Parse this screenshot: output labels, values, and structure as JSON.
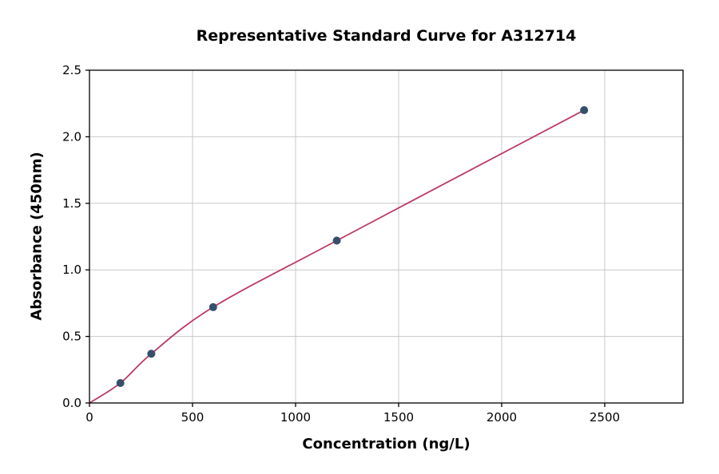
{
  "chart_data": {
    "type": "scatter",
    "title": "Representative Standard Curve for A312714",
    "xlabel": "Concentration (ng/L)",
    "ylabel": "Absorbance (450nm)",
    "xlim": [
      0,
      2880
    ],
    "ylim": [
      0,
      2.5
    ],
    "x_ticks": [
      0,
      500,
      1000,
      1500,
      2000,
      2500
    ],
    "y_ticks": [
      0,
      0.5,
      1.0,
      1.5,
      2.0,
      2.5
    ],
    "grid": true,
    "legend": "none",
    "points": {
      "x": [
        150,
        300,
        600,
        1200,
        2400
      ],
      "y": [
        0.15,
        0.37,
        0.72,
        1.22,
        2.2
      ]
    },
    "fit_curve": {
      "x": [
        0,
        150,
        300,
        600,
        1200,
        2400
      ],
      "y": [
        0.0,
        0.15,
        0.37,
        0.72,
        1.22,
        2.2
      ]
    },
    "colors": {
      "curve": "#bd3a62",
      "point": "#36506c",
      "grid": "#c9c9c9",
      "axis": "#000000",
      "background": "#ffffff"
    }
  }
}
